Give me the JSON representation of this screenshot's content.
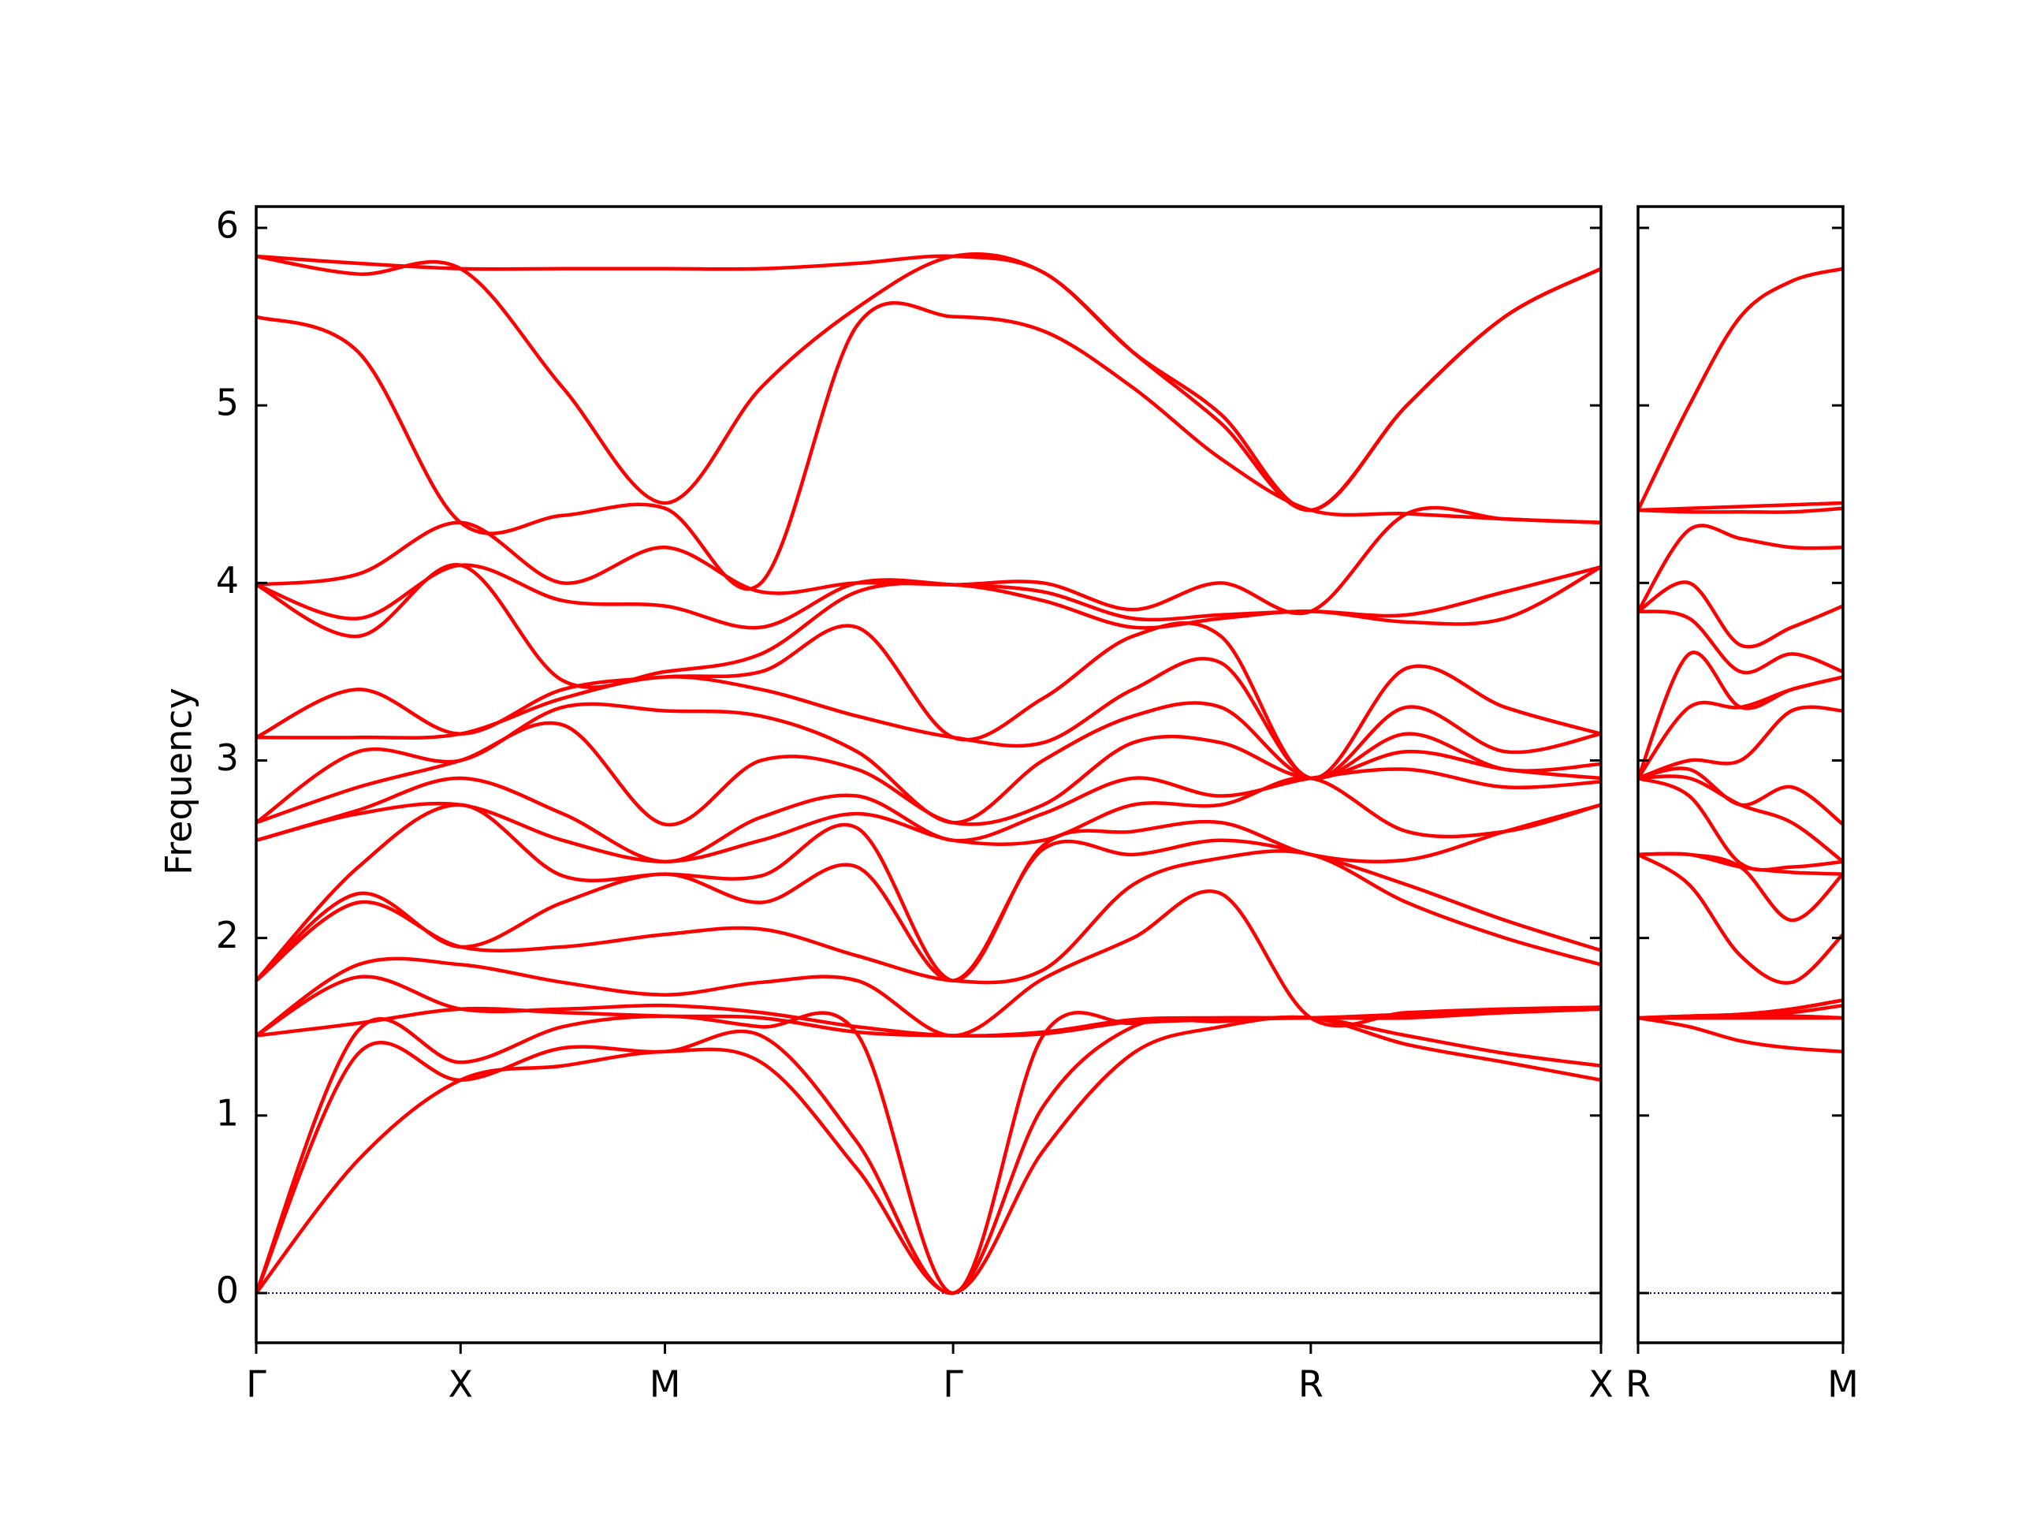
{
  "chart_data": [
    {
      "type": "line",
      "ylabel": "Frequency",
      "color": "#ff0000",
      "x": [
        0,
        0.5,
        1,
        1.5,
        2,
        2.47,
        2.94,
        3.41,
        3.85,
        4.29,
        4.72,
        5.16,
        5.63,
        6.11,
        6.58
      ],
      "xlim": [
        0,
        6.58
      ],
      "ylim": [
        -0.28,
        6.12
      ],
      "xticks": [
        {
          "value": 0,
          "label": "Γ"
        },
        {
          "value": 1,
          "label": "X"
        },
        {
          "value": 2,
          "label": "M"
        },
        {
          "value": 3.41,
          "label": "Γ"
        },
        {
          "value": 5.16,
          "label": "R"
        },
        {
          "value": 6.58,
          "label": "X"
        }
      ],
      "yticks": [
        0,
        1,
        2,
        3,
        4,
        5,
        6
      ],
      "ytick_labels": true,
      "hline": {
        "value": 0,
        "color": "#00008b",
        "style": "dotted"
      },
      "series": [
        {
          "values": [
            0,
            0.75,
            1.2,
            1.28,
            1.36,
            1.3,
            0.7,
            0,
            0.8,
            1.35,
            1.5,
            1.55,
            1.4,
            1.3,
            1.2
          ]
        },
        {
          "values": [
            0,
            1.35,
            1.2,
            1.38,
            1.36,
            1.45,
            0.85,
            0,
            1.05,
            1.5,
            1.53,
            1.55,
            1.45,
            1.35,
            1.28
          ]
        },
        {
          "values": [
            0,
            1.48,
            1.3,
            1.5,
            1.56,
            1.5,
            1.46,
            0,
            1.45,
            1.52,
            1.54,
            1.55,
            1.55,
            1.58,
            1.6
          ]
        },
        {
          "values": [
            1.45,
            1.52,
            1.6,
            1.58,
            1.56,
            1.55,
            1.47,
            1.45,
            1.46,
            1.53,
            1.55,
            1.55,
            1.56,
            1.58,
            1.6
          ]
        },
        {
          "values": [
            1.45,
            1.78,
            1.6,
            1.6,
            1.62,
            1.58,
            1.5,
            1.45,
            1.47,
            1.54,
            1.55,
            1.55,
            1.57,
            1.59,
            1.61
          ]
        },
        {
          "values": [
            1.45,
            1.85,
            1.85,
            1.75,
            1.68,
            1.75,
            1.76,
            1.45,
            1.77,
            2.0,
            2.25,
            1.55,
            1.58,
            1.6,
            1.61
          ]
        },
        {
          "values": [
            1.76,
            2.2,
            1.95,
            1.95,
            2.02,
            2.05,
            1.9,
            1.76,
            1.82,
            2.3,
            2.45,
            2.47,
            2.2,
            2.0,
            1.85
          ]
        },
        {
          "values": [
            1.76,
            2.25,
            1.95,
            2.2,
            2.36,
            2.2,
            2.4,
            1.76,
            2.5,
            2.47,
            2.55,
            2.47,
            2.3,
            2.1,
            1.93
          ]
        },
        {
          "values": [
            1.76,
            2.4,
            2.75,
            2.35,
            2.36,
            2.35,
            2.62,
            1.76,
            2.52,
            2.6,
            2.65,
            2.47,
            2.44,
            2.6,
            2.75
          ]
        },
        {
          "values": [
            2.55,
            2.7,
            2.75,
            2.55,
            2.43,
            2.55,
            2.7,
            2.55,
            2.55,
            2.75,
            2.75,
            2.9,
            2.6,
            2.6,
            2.75
          ]
        },
        {
          "values": [
            2.55,
            2.72,
            2.9,
            2.7,
            2.43,
            2.68,
            2.8,
            2.55,
            2.7,
            2.9,
            2.8,
            2.9,
            2.95,
            2.85,
            2.88
          ]
        },
        {
          "values": [
            2.65,
            2.85,
            3.0,
            3.2,
            2.64,
            3.0,
            2.95,
            2.65,
            2.75,
            3.1,
            3.1,
            2.9,
            3.05,
            2.95,
            2.9
          ]
        },
        {
          "values": [
            2.65,
            3.05,
            3.0,
            3.3,
            3.28,
            3.25,
            3.05,
            2.65,
            3.0,
            3.25,
            3.3,
            2.9,
            3.15,
            2.95,
            2.98
          ]
        },
        {
          "values": [
            3.13,
            3.13,
            3.15,
            3.35,
            3.47,
            3.4,
            3.25,
            3.13,
            3.1,
            3.4,
            3.55,
            2.9,
            3.3,
            3.05,
            3.15
          ]
        },
        {
          "values": [
            3.13,
            3.4,
            3.15,
            3.4,
            3.47,
            3.5,
            3.75,
            3.13,
            3.35,
            3.7,
            3.7,
            2.9,
            3.52,
            3.3,
            3.15
          ]
        },
        {
          "values": [
            3.99,
            3.7,
            4.1,
            3.45,
            3.5,
            3.6,
            3.95,
            3.99,
            3.9,
            3.75,
            3.8,
            3.84,
            3.78,
            3.8,
            4.09
          ]
        },
        {
          "values": [
            3.99,
            3.8,
            4.1,
            3.9,
            3.87,
            3.75,
            4.0,
            3.99,
            3.95,
            3.8,
            3.82,
            3.84,
            3.82,
            3.95,
            4.09
          ]
        },
        {
          "values": [
            3.99,
            4.05,
            4.34,
            4.0,
            4.2,
            3.95,
            4.0,
            3.99,
            4.0,
            3.85,
            4.0,
            3.84,
            4.39,
            4.36,
            4.34
          ]
        },
        {
          "values": [
            5.5,
            5.3,
            4.34,
            4.38,
            4.42,
            4.0,
            5.45,
            5.5,
            5.42,
            5.1,
            4.7,
            4.41,
            4.39,
            4.36,
            4.34
          ]
        },
        {
          "values": [
            5.84,
            5.74,
            5.77,
            5.1,
            4.45,
            5.1,
            5.55,
            5.84,
            5.75,
            5.3,
            4.9,
            4.41,
            5.0,
            5.5,
            5.77
          ]
        },
        {
          "values": [
            5.84,
            5.8,
            5.77,
            5.77,
            5.77,
            5.77,
            5.8,
            5.84,
            5.75,
            5.3,
            4.95,
            4.41,
            5.0,
            5.5,
            5.77
          ]
        }
      ]
    },
    {
      "type": "line",
      "color": "#ff0000",
      "x": [
        0,
        0.25,
        0.5,
        0.75,
        1
      ],
      "xlim": [
        0,
        1
      ],
      "ylim": [
        -0.28,
        6.12
      ],
      "xticks": [
        {
          "value": 0,
          "label": "R"
        },
        {
          "value": 1,
          "label": "M"
        }
      ],
      "yticks": [
        0,
        1,
        2,
        3,
        4,
        5,
        6
      ],
      "ytick_labels": false,
      "hline": {
        "value": 0,
        "color": "#00008b",
        "style": "dotted"
      },
      "series": [
        {
          "values": [
            1.55,
            1.5,
            1.42,
            1.38,
            1.36
          ]
        },
        {
          "values": [
            1.55,
            1.55,
            1.55,
            1.55,
            1.55
          ]
        },
        {
          "values": [
            1.55,
            1.55,
            1.56,
            1.56,
            1.55
          ]
        },
        {
          "values": [
            1.55,
            1.55,
            1.56,
            1.58,
            1.62
          ]
        },
        {
          "values": [
            1.55,
            1.56,
            1.57,
            1.6,
            1.65
          ]
        },
        {
          "values": [
            1.55,
            1.56,
            1.57,
            1.6,
            1.65
          ]
        },
        {
          "values": [
            2.47,
            2.3,
            1.9,
            1.75,
            2.02
          ]
        },
        {
          "values": [
            2.47,
            2.47,
            2.4,
            2.1,
            2.36
          ]
        },
        {
          "values": [
            2.47,
            2.47,
            2.4,
            2.37,
            2.36
          ]
        },
        {
          "values": [
            2.9,
            2.8,
            2.42,
            2.4,
            2.43
          ]
        },
        {
          "values": [
            2.9,
            2.9,
            2.75,
            2.65,
            2.43
          ]
        },
        {
          "values": [
            2.9,
            2.95,
            2.75,
            2.85,
            2.64
          ]
        },
        {
          "values": [
            2.9,
            3.0,
            3.0,
            3.28,
            3.28
          ]
        },
        {
          "values": [
            2.9,
            3.3,
            3.3,
            3.4,
            3.47
          ]
        },
        {
          "values": [
            2.9,
            3.6,
            3.3,
            3.4,
            3.47
          ]
        },
        {
          "values": [
            3.84,
            3.8,
            3.5,
            3.6,
            3.5
          ]
        },
        {
          "values": [
            3.84,
            4.0,
            3.65,
            3.75,
            3.87
          ]
        },
        {
          "values": [
            3.84,
            4.3,
            4.25,
            4.2,
            4.2
          ]
        },
        {
          "values": [
            4.41,
            4.4,
            4.4,
            4.4,
            4.42
          ]
        },
        {
          "values": [
            4.41,
            4.42,
            4.43,
            4.44,
            4.45
          ]
        },
        {
          "values": [
            4.41,
            5.0,
            5.5,
            5.7,
            5.77
          ]
        }
      ]
    }
  ]
}
